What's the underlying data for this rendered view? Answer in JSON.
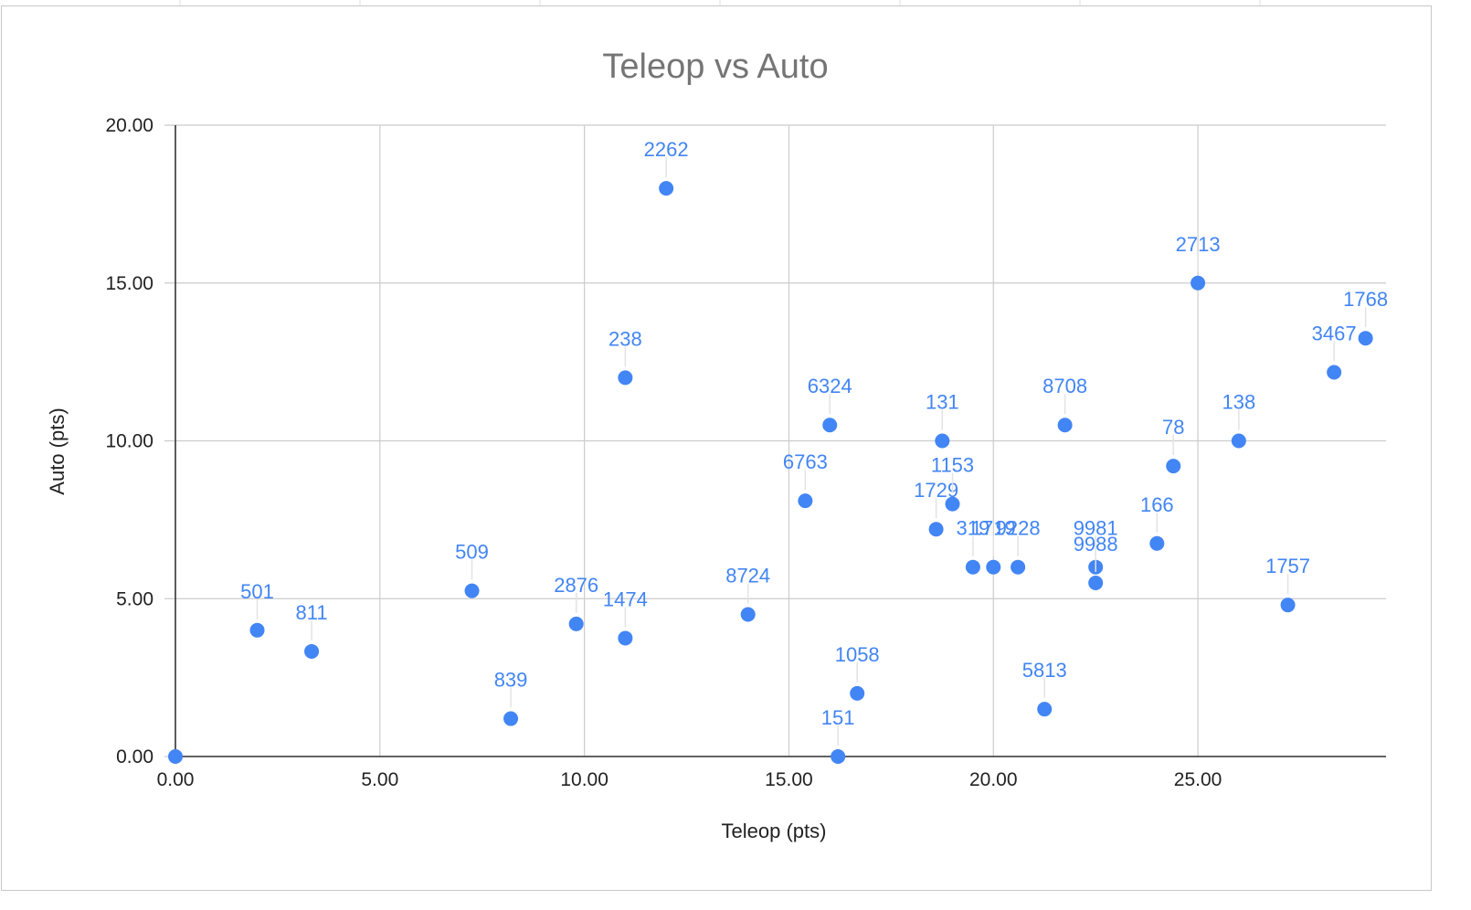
{
  "chart_data": {
    "type": "scatter",
    "title": "Teleop vs Auto",
    "xlabel": "Teleop (pts)",
    "ylabel": "Auto (pts)",
    "xlim": [
      0,
      29.6
    ],
    "ylim": [
      0,
      20
    ],
    "x_ticks": [
      "0.00",
      "5.00",
      "10.00",
      "15.00",
      "20.00",
      "25.00"
    ],
    "y_ticks": [
      "0.00",
      "5.00",
      "10.00",
      "15.00",
      "20.00"
    ],
    "x_tick_values": [
      0,
      5,
      10,
      15,
      20,
      25
    ],
    "y_tick_values": [
      0,
      5,
      10,
      15,
      20
    ],
    "grid": true,
    "legend": "none",
    "color": "#4285f4",
    "points": [
      {
        "label": "",
        "x": 0,
        "y": 0
      },
      {
        "label": "501",
        "x": 2.0,
        "y": 4.0
      },
      {
        "label": "811",
        "x": 3.33,
        "y": 3.33
      },
      {
        "label": "509",
        "x": 7.25,
        "y": 5.25
      },
      {
        "label": "839",
        "x": 8.2,
        "y": 1.2
      },
      {
        "label": "2876",
        "x": 9.8,
        "y": 4.2
      },
      {
        "label": "238",
        "x": 11.0,
        "y": 12.0
      },
      {
        "label": "1474",
        "x": 11.0,
        "y": 3.75
      },
      {
        "label": "2262",
        "x": 12.0,
        "y": 18.0
      },
      {
        "label": "8724",
        "x": 14.0,
        "y": 4.5
      },
      {
        "label": "6763",
        "x": 15.4,
        "y": 8.1
      },
      {
        "label": "6324",
        "x": 16.0,
        "y": 10.5
      },
      {
        "label": "151",
        "x": 16.2,
        "y": 0.0
      },
      {
        "label": "1058",
        "x": 16.67,
        "y": 2.0
      },
      {
        "label": "1729",
        "x": 18.6,
        "y": 7.2
      },
      {
        "label": "131",
        "x": 18.75,
        "y": 10.0
      },
      {
        "label": "1153",
        "x": 19.0,
        "y": 8.0
      },
      {
        "label": "319",
        "x": 19.5,
        "y": 6.0
      },
      {
        "label": "1719",
        "x": 20.0,
        "y": 6.0
      },
      {
        "label": "9228",
        "x": 20.6,
        "y": 6.0
      },
      {
        "label": "5813",
        "x": 21.25,
        "y": 1.5
      },
      {
        "label": "8708",
        "x": 21.75,
        "y": 10.5
      },
      {
        "label": "9981",
        "x": 22.5,
        "y": 6.0
      },
      {
        "label": "9988",
        "x": 22.5,
        "y": 5.5
      },
      {
        "label": "166",
        "x": 24.0,
        "y": 6.75
      },
      {
        "label": "78",
        "x": 24.4,
        "y": 9.2
      },
      {
        "label": "2713",
        "x": 25.0,
        "y": 15.0
      },
      {
        "label": "138",
        "x": 26.0,
        "y": 10.0
      },
      {
        "label": "1757",
        "x": 27.2,
        "y": 4.8
      },
      {
        "label": "3467",
        "x": 28.33,
        "y": 12.17
      },
      {
        "label": "1768",
        "x": 29.1,
        "y": 13.25
      }
    ]
  }
}
